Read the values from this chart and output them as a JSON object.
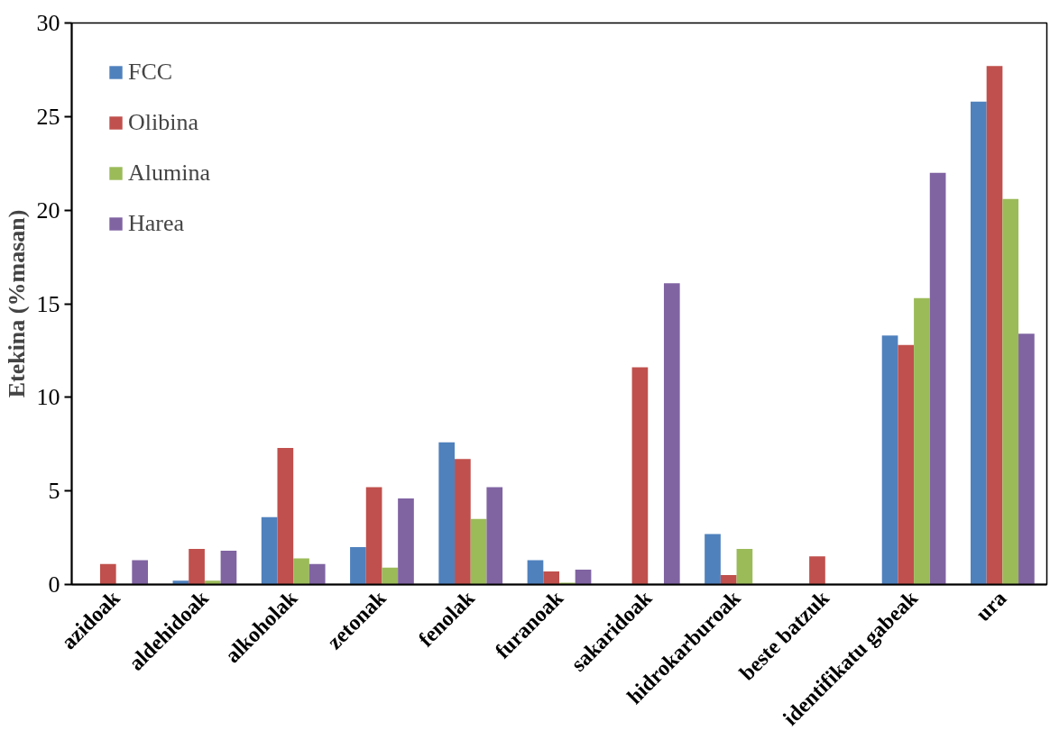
{
  "chart_data": {
    "type": "bar",
    "ylabel": "Etekina (%masan)",
    "categories": [
      "azidoak",
      "aldehidoak",
      "alkoholak",
      "zetonak",
      "fenolak",
      "furanoak",
      "sakaridoak",
      "hidrokarburoak",
      "beste batzuk",
      "identifikatu gabeak",
      "ura"
    ],
    "series": [
      {
        "name": "FCC",
        "color": "#4f81bd",
        "values": [
          0,
          0.2,
          3.6,
          2.0,
          7.6,
          1.3,
          0,
          2.7,
          0,
          13.3,
          25.8
        ]
      },
      {
        "name": "Olibina",
        "color": "#c0504d",
        "values": [
          1.1,
          1.9,
          7.3,
          5.2,
          6.7,
          0.7,
          11.6,
          0.5,
          1.5,
          12.8,
          27.7
        ]
      },
      {
        "name": "Alumina",
        "color": "#9bbb59",
        "values": [
          0,
          0.2,
          1.4,
          0.9,
          3.5,
          0.1,
          0,
          1.9,
          0,
          15.3,
          20.6
        ]
      },
      {
        "name": "Harea",
        "color": "#8064a2",
        "values": [
          1.3,
          1.8,
          1.1,
          4.6,
          5.2,
          0.8,
          16.1,
          0,
          0,
          22.0,
          13.4
        ]
      }
    ],
    "ylim": [
      0,
      30
    ],
    "yticks": [
      0,
      5,
      10,
      15,
      20,
      25,
      30
    ],
    "grid": false,
    "legend": "top left"
  }
}
